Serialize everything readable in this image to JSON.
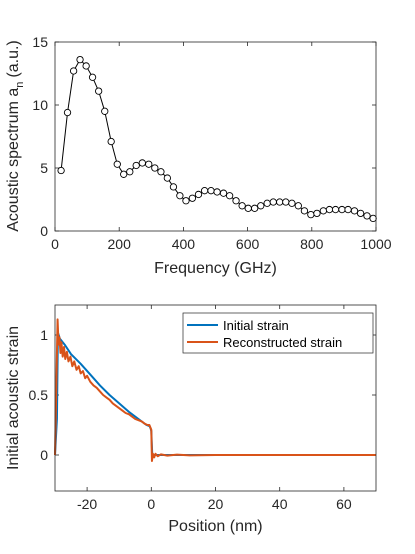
{
  "chart_data": [
    {
      "type": "line",
      "xlabel": "Frequency (GHz)",
      "ylabel": "Acoustic spectrum a",
      "ylabel_subscript": "n",
      "ylabel_suffix": "(a.u.)",
      "xlim": [
        0,
        1000
      ],
      "ylim": [
        0,
        15
      ],
      "xticks": [
        0,
        200,
        400,
        600,
        800,
        1000
      ],
      "yticks": [
        0,
        5,
        10,
        15
      ],
      "grid": false,
      "marker": "open-circle",
      "line_color": "#000000",
      "series": [
        {
          "x": [
            19,
            39,
            58,
            78,
            97,
            117,
            136,
            155,
            175,
            194,
            214,
            233,
            253,
            272,
            292,
            311,
            330,
            350,
            369,
            389,
            408,
            428,
            447,
            466,
            486,
            505,
            525,
            544,
            564,
            583,
            602,
            622,
            641,
            661,
            680,
            700,
            719,
            738,
            758,
            777,
            797,
            816,
            836,
            855,
            874,
            894,
            913,
            933,
            952,
            972,
            991
          ],
          "values": [
            4.8,
            9.4,
            12.7,
            13.6,
            13.1,
            12.2,
            11.1,
            9.5,
            7.1,
            5.3,
            4.5,
            4.7,
            5.2,
            5.4,
            5.3,
            5.0,
            4.7,
            4.2,
            3.5,
            2.8,
            2.4,
            2.6,
            2.9,
            3.2,
            3.2,
            3.1,
            3.0,
            2.8,
            2.4,
            2.0,
            1.8,
            1.8,
            2.0,
            2.2,
            2.3,
            2.3,
            2.3,
            2.2,
            2.0,
            1.6,
            1.3,
            1.4,
            1.6,
            1.7,
            1.7,
            1.7,
            1.7,
            1.6,
            1.4,
            1.2,
            1.0
          ]
        }
      ]
    },
    {
      "type": "line",
      "xlabel": "Position (nm)",
      "ylabel": "Initial acoustic strain",
      "xlim": [
        -30,
        70
      ],
      "ylim": [
        -0.3,
        1.25
      ],
      "xticks": [
        -20,
        0,
        20,
        40,
        60
      ],
      "yticks": [
        0,
        0.5,
        1
      ],
      "grid": false,
      "legend": "top-right",
      "series": [
        {
          "name": "Initial strain",
          "color": "#0072BD",
          "x": [
            -30,
            -29.4,
            -29.1,
            -28.5,
            -27,
            -25,
            -22,
            -19,
            -16,
            -13,
            -10,
            -7,
            -4,
            -1.5,
            -0.5,
            -0.2,
            0,
            0.3,
            1,
            3,
            10,
            30,
            50,
            70
          ],
          "values": [
            0,
            0.3,
            1.02,
            0.97,
            0.92,
            0.84,
            0.76,
            0.67,
            0.58,
            0.5,
            0.43,
            0.36,
            0.3,
            0.25,
            0.24,
            0.22,
            0.2,
            0.0,
            0.0,
            0.0,
            0.0,
            0.0,
            0.0,
            0.0
          ]
        },
        {
          "name": "Reconstructed strain",
          "color": "#D95319",
          "x": [
            -30,
            -29.6,
            -29.2,
            -28.9,
            -28.6,
            -28.3,
            -28,
            -27.6,
            -27.2,
            -26.8,
            -26.3,
            -25.8,
            -25.2,
            -24.6,
            -24,
            -23.3,
            -22.6,
            -22,
            -21.3,
            -20.6,
            -20,
            -19,
            -18,
            -17,
            -16,
            -15,
            -14,
            -13,
            -12,
            -11,
            -10,
            -9,
            -8,
            -7,
            -6,
            -5,
            -4,
            -3,
            -2,
            -1.2,
            -0.6,
            -0.3,
            0,
            0.2,
            0.5,
            0.9,
            1.3,
            2,
            3,
            5,
            8,
            12,
            20,
            30,
            40,
            50,
            60,
            70
          ],
          "values": [
            0,
            0.55,
            1.13,
            0.92,
            0.98,
            0.85,
            0.94,
            0.82,
            0.9,
            0.8,
            0.86,
            0.78,
            0.82,
            0.74,
            0.78,
            0.71,
            0.74,
            0.68,
            0.7,
            0.64,
            0.66,
            0.61,
            0.58,
            0.56,
            0.53,
            0.5,
            0.48,
            0.46,
            0.43,
            0.41,
            0.39,
            0.37,
            0.35,
            0.34,
            0.32,
            0.3,
            0.29,
            0.28,
            0.26,
            0.25,
            0.25,
            0.23,
            0.21,
            -0.05,
            0.01,
            -0.02,
            0.01,
            -0.01,
            0.005,
            -0.005,
            0.003,
            -0.003,
            0.0,
            0.0,
            0.0,
            0.0,
            0.0,
            0.0
          ]
        }
      ]
    }
  ]
}
